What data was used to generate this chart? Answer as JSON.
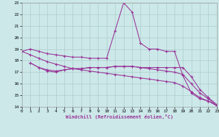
{
  "xlabel": "Windchill (Refroidissement éolien,°C)",
  "bg_color": "#cce8e8",
  "grid_color": "#aacccc",
  "line_color": "#993399",
  "xlim": [
    0,
    23
  ],
  "ylim": [
    14,
    23
  ],
  "xticks": [
    0,
    1,
    2,
    3,
    4,
    5,
    6,
    7,
    8,
    9,
    10,
    11,
    12,
    13,
    14,
    15,
    16,
    17,
    18,
    19,
    20,
    21,
    22,
    23
  ],
  "yticks": [
    14,
    15,
    16,
    17,
    18,
    19,
    20,
    21,
    22,
    23
  ],
  "series": {
    "line1_x": [
      0,
      1,
      2,
      3,
      4,
      5,
      6,
      7,
      8,
      9,
      10,
      11,
      12,
      13,
      14,
      15,
      16,
      17,
      18,
      19,
      20,
      21,
      22,
      23
    ],
    "line1_y": [
      18.8,
      19.0,
      18.8,
      18.6,
      18.5,
      18.4,
      18.3,
      18.3,
      18.2,
      18.2,
      18.2,
      20.6,
      23.0,
      22.2,
      19.5,
      19.0,
      19.0,
      18.8,
      18.8,
      16.7,
      15.2,
      14.7,
      14.5,
      14.1
    ],
    "line2_x": [
      1,
      2,
      3,
      4,
      5,
      6,
      7,
      8,
      9,
      10,
      11,
      12,
      13,
      14,
      15,
      16,
      17,
      18,
      19,
      20,
      21,
      22,
      23
    ],
    "line2_y": [
      17.8,
      17.4,
      17.1,
      17.0,
      17.2,
      17.3,
      17.3,
      17.4,
      17.4,
      17.4,
      17.5,
      17.5,
      17.5,
      17.4,
      17.4,
      17.4,
      17.4,
      17.4,
      17.4,
      16.6,
      15.5,
      14.8,
      14.2
    ],
    "line3_x": [
      1,
      2,
      3,
      4,
      5,
      6,
      7,
      8,
      9,
      10,
      11,
      12,
      13,
      14,
      15,
      16,
      17,
      18,
      19,
      20,
      21,
      22,
      23
    ],
    "line3_y": [
      17.8,
      17.4,
      17.2,
      17.1,
      17.2,
      17.3,
      17.3,
      17.4,
      17.4,
      17.4,
      17.5,
      17.5,
      17.5,
      17.4,
      17.3,
      17.2,
      17.1,
      17.0,
      16.8,
      16.0,
      15.2,
      14.7,
      14.1
    ],
    "line4_x": [
      0,
      1,
      2,
      3,
      4,
      5,
      6,
      7,
      8,
      9,
      10,
      11,
      12,
      13,
      14,
      15,
      16,
      17,
      18,
      19,
      20,
      21,
      22,
      23
    ],
    "line4_y": [
      18.8,
      18.5,
      18.2,
      17.9,
      17.7,
      17.5,
      17.3,
      17.2,
      17.1,
      17.0,
      16.9,
      16.8,
      16.7,
      16.6,
      16.5,
      16.4,
      16.3,
      16.2,
      16.1,
      15.8,
      15.3,
      14.8,
      14.5,
      14.1
    ]
  }
}
